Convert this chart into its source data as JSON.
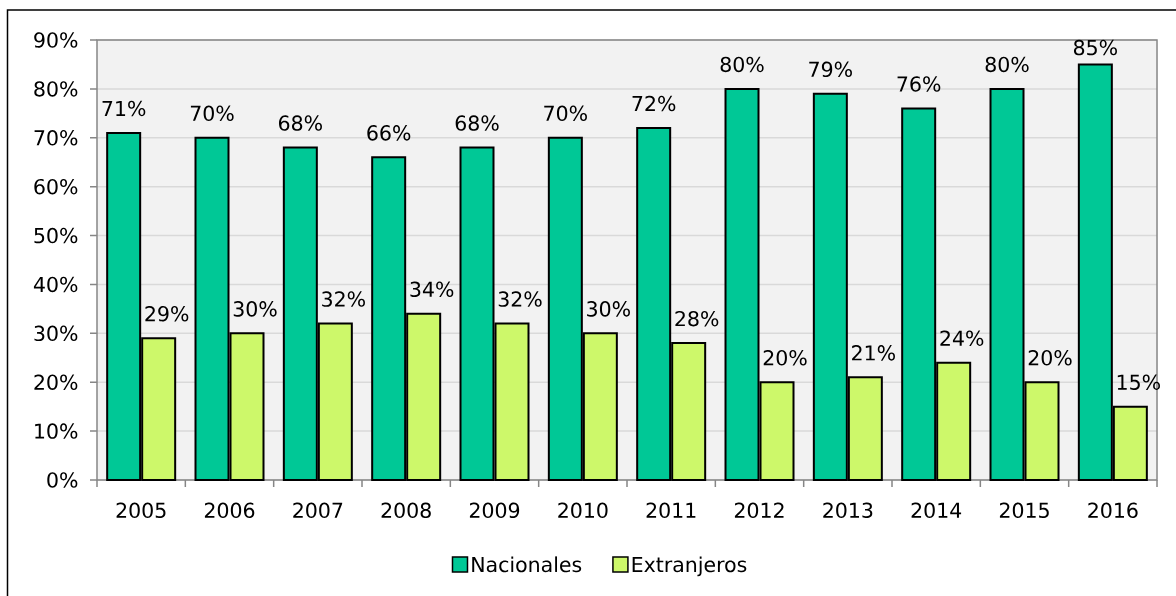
{
  "chart_data": {
    "type": "bar",
    "categories": [
      "2005",
      "2006",
      "2007",
      "2008",
      "2009",
      "2010",
      "2011",
      "2012",
      "2013",
      "2014",
      "2015",
      "2016"
    ],
    "series": [
      {
        "name": "Nacionales",
        "color": "#00c896",
        "values": [
          71,
          70,
          68,
          66,
          68,
          70,
          72,
          80,
          79,
          76,
          80,
          85
        ],
        "value_labels": [
          "71%",
          "70%",
          "68%",
          "66%",
          "68%",
          "70%",
          "72%",
          "80%",
          "79%",
          "76%",
          "80%",
          "85%"
        ]
      },
      {
        "name": "Extranjeros",
        "color": "#cdf86a",
        "values": [
          29,
          30,
          32,
          34,
          32,
          30,
          28,
          20,
          21,
          24,
          20,
          15
        ],
        "value_labels": [
          "29%",
          "30%",
          "32%",
          "34%",
          "32%",
          "30%",
          "28%",
          "20%",
          "21%",
          "24%",
          "20%",
          "15%"
        ]
      }
    ],
    "ylim": [
      0,
      90
    ],
    "yticks": [
      {
        "value": 0,
        "label": "0%"
      },
      {
        "value": 10,
        "label": "10%"
      },
      {
        "value": 20,
        "label": "20%"
      },
      {
        "value": 30,
        "label": "30%"
      },
      {
        "value": 40,
        "label": "40%"
      },
      {
        "value": 50,
        "label": "50%"
      },
      {
        "value": 60,
        "label": "60%"
      },
      {
        "value": 70,
        "label": "70%"
      },
      {
        "value": 80,
        "label": "80%"
      },
      {
        "value": 90,
        "label": "90%"
      }
    ],
    "grid": "y",
    "legend": "bottom"
  }
}
